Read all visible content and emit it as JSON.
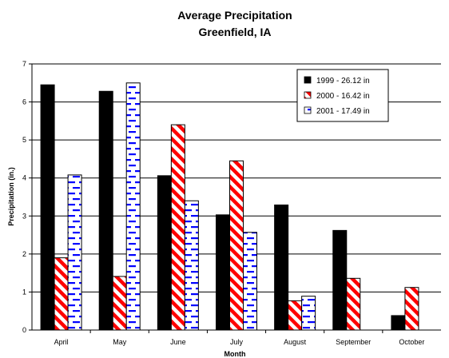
{
  "chart_data": {
    "type": "bar",
    "title": "Average Precipitation",
    "subtitle": "Greenfield, IA",
    "xlabel": "Month",
    "ylabel": "Precipitation (in.)",
    "ylim": [
      0,
      7
    ],
    "yticks": [
      "0",
      "1",
      "2",
      "3",
      "4",
      "5",
      "6",
      "7"
    ],
    "grid": true,
    "legend_position": "top-right",
    "categories": [
      "April",
      "May",
      "June",
      "July",
      "August",
      "September",
      "October"
    ],
    "series": [
      {
        "name": "1999 - 26.12 in",
        "pattern": "solid",
        "color": "#000000",
        "values": [
          6.45,
          6.28,
          4.06,
          3.03,
          3.29,
          2.62,
          0.38
        ]
      },
      {
        "name": "2000 - 16.42 in",
        "pattern": "diagonal-stripes",
        "color": "#ff0000",
        "values": [
          1.9,
          1.41,
          5.4,
          4.45,
          0.77,
          1.36,
          1.12
        ]
      },
      {
        "name": "2001 - 17.49 in",
        "pattern": "blue-dashes",
        "color": "#0000ff",
        "values": [
          4.08,
          6.5,
          3.4,
          2.57,
          0.89,
          null,
          null
        ]
      }
    ]
  }
}
